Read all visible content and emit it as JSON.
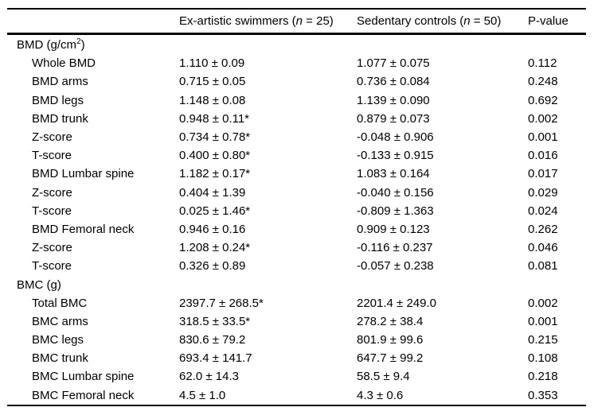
{
  "table": {
    "header": {
      "empty": "",
      "swimmers": {
        "prefix": "Ex-artistic swimmers (",
        "n": "n",
        "rest": " = 25)"
      },
      "controls": {
        "prefix": "Sedentary controls (",
        "n": "n",
        "rest": " = 50)"
      },
      "pvalue": "P-value"
    },
    "rows": [
      {
        "type": "section",
        "label": "BMD (g/cm",
        "sup": "2",
        "label_suffix": ")"
      },
      {
        "type": "data",
        "label": "Whole BMD",
        "swimmers": "1.110 ± 0.09",
        "controls": "1.077 ± 0.075",
        "p": "0.112"
      },
      {
        "type": "data",
        "label": "BMD arms",
        "swimmers": "0.715 ± 0.05",
        "controls": "0.736 ± 0.084",
        "p": "0.248"
      },
      {
        "type": "data",
        "label": "BMD legs",
        "swimmers": "1.148 ± 0.08",
        "controls": "1.139 ± 0.090",
        "p": "0.692"
      },
      {
        "type": "data",
        "label": "BMD trunk",
        "swimmers": "0.948 ± 0.11*",
        "controls": "0.879 ± 0.073",
        "p": "0.002"
      },
      {
        "type": "data",
        "label": "Z-score",
        "swimmers": "0.734 ± 0.78*",
        "controls": "-0.048 ± 0.906",
        "p": "0.001"
      },
      {
        "type": "data",
        "label": "T-score",
        "swimmers": "0.400 ± 0.80*",
        "controls": "-0.133 ± 0.915",
        "p": "0.016"
      },
      {
        "type": "data",
        "label": "BMD Lumbar spine",
        "swimmers": "1.182 ± 0.17*",
        "controls": "1.083 ± 0.164",
        "p": "0.017"
      },
      {
        "type": "data",
        "label": "Z-score",
        "swimmers": "0.404 ± 1.39",
        "controls": "-0.040 ± 0.156",
        "p": "0.029"
      },
      {
        "type": "data",
        "label": "T-score",
        "swimmers": "0.025 ± 1.46*",
        "controls": "-0.809 ± 1.363",
        "p": "0.024"
      },
      {
        "type": "data",
        "label": "BMD Femoral neck",
        "swimmers": "0.946 ± 0.16",
        "controls": "0.909 ± 0.123",
        "p": "0.262"
      },
      {
        "type": "data",
        "label": "Z-score",
        "swimmers": "1.208 ± 0.24*",
        "controls": "-0.116 ± 0.237",
        "p": "0.046"
      },
      {
        "type": "data",
        "label": "T-score",
        "swimmers": "0.326 ± 0.89",
        "controls": "-0.057 ± 0.238",
        "p": "0.081"
      },
      {
        "type": "section",
        "label": "BMC (g)",
        "sup": "",
        "label_suffix": ""
      },
      {
        "type": "data",
        "label": "Total BMC",
        "swimmers": "2397.7 ± 268.5*",
        "controls": "2201.4 ± 249.0",
        "p": "0.002"
      },
      {
        "type": "data",
        "label": "BMC arms",
        "swimmers": "318.5 ± 33.5*",
        "controls": "278.2 ± 38.4",
        "p": "0.001"
      },
      {
        "type": "data",
        "label": "BMC legs",
        "swimmers": "830.6 ± 79.2",
        "controls": "801.9 ± 99.6",
        "p": "0.215"
      },
      {
        "type": "data",
        "label": "BMC trunk",
        "swimmers": "693.4 ± 141.7",
        "controls": "647.7 ± 99.2",
        "p": "0.108"
      },
      {
        "type": "data",
        "label": "BMC Lumbar spine",
        "swimmers": "62.0 ± 14.3",
        "controls": "58.5 ± 9.4",
        "p": "0.218"
      },
      {
        "type": "data",
        "label": "BMC Femoral neck",
        "swimmers": "4.5 ± 1.0",
        "controls": "4.3 ± 0.6",
        "p": "0.353"
      }
    ]
  },
  "chart_data": {
    "type": "table",
    "columns": [
      "",
      "Ex-artistic swimmers (n = 25)",
      "Sedentary controls (n = 50)",
      "P-value"
    ],
    "rows": [
      [
        "BMD (g/cm2)",
        "",
        "",
        ""
      ],
      [
        "Whole BMD",
        "1.110 ± 0.09",
        "1.077 ± 0.075",
        "0.112"
      ],
      [
        "BMD arms",
        "0.715 ± 0.05",
        "0.736 ± 0.084",
        "0.248"
      ],
      [
        "BMD legs",
        "1.148 ± 0.08",
        "1.139 ± 0.090",
        "0.692"
      ],
      [
        "BMD trunk",
        "0.948 ± 0.11*",
        "0.879 ± 0.073",
        "0.002"
      ],
      [
        "Z-score",
        "0.734 ± 0.78*",
        "-0.048 ± 0.906",
        "0.001"
      ],
      [
        "T-score",
        "0.400 ± 0.80*",
        "-0.133 ± 0.915",
        "0.016"
      ],
      [
        "BMD Lumbar spine",
        "1.182 ± 0.17*",
        "1.083 ± 0.164",
        "0.017"
      ],
      [
        "Z-score",
        "0.404 ± 1.39",
        "-0.040 ± 0.156",
        "0.029"
      ],
      [
        "T-score",
        "0.025 ± 1.46*",
        "-0.809 ± 1.363",
        "0.024"
      ],
      [
        "BMD Femoral neck",
        "0.946 ± 0.16",
        "0.909 ± 0.123",
        "0.262"
      ],
      [
        "Z-score",
        "1.208 ± 0.24*",
        "-0.116 ± 0.237",
        "0.046"
      ],
      [
        "T-score",
        "0.326 ± 0.89",
        "-0.057 ± 0.238",
        "0.081"
      ],
      [
        "BMC (g)",
        "",
        "",
        ""
      ],
      [
        "Total BMC",
        "2397.7 ± 268.5*",
        "2201.4 ± 249.0",
        "0.002"
      ],
      [
        "BMC arms",
        "318.5 ± 33.5*",
        "278.2 ± 38.4",
        "0.001"
      ],
      [
        "BMC legs",
        "830.6 ± 79.2",
        "801.9 ± 99.6",
        "0.215"
      ],
      [
        "BMC trunk",
        "693.4 ± 141.7",
        "647.7 ± 99.2",
        "0.108"
      ],
      [
        "BMC Lumbar spine",
        "62.0 ± 14.3",
        "58.5 ± 9.4",
        "0.218"
      ],
      [
        "BMC Femoral neck",
        "4.5 ± 1.0",
        "4.3 ± 0.6",
        "0.353"
      ]
    ]
  }
}
